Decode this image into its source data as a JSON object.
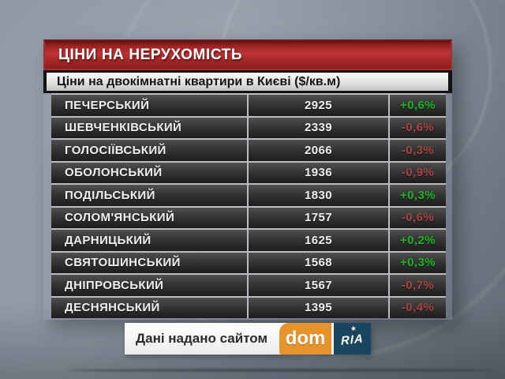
{
  "header": {
    "title": "ЦІНИ НА НЕРУХОМІСТЬ"
  },
  "subtitle": {
    "text": "Ціни на двокімнатні квартири в Києві ($/кв.м)"
  },
  "chart_data": {
    "type": "table",
    "title": "ЦІНИ НА НЕРУХОМІСТЬ",
    "subtitle": "Ціни на двокімнатні квартири в Києві ($/кв.м)",
    "columns": [
      "district",
      "price_usd_per_sqm",
      "change_percent"
    ],
    "rows": [
      {
        "district": "ПЕЧЕРСЬКИЙ",
        "price": "2925",
        "change": "+0,6%",
        "direction": "up"
      },
      {
        "district": "ШЕВЧЕНКІВСЬКИЙ",
        "price": "2339",
        "change": "-0,6%",
        "direction": "down"
      },
      {
        "district": "ГОЛОСІЇВСЬКИЙ",
        "price": "2066",
        "change": "-0,3%",
        "direction": "down"
      },
      {
        "district": "ОБОЛОНСЬКИЙ",
        "price": "1936",
        "change": "-0,9%",
        "direction": "down"
      },
      {
        "district": "ПОДІЛЬСЬКИЙ",
        "price": "1830",
        "change": "+0,3%",
        "direction": "up"
      },
      {
        "district": "СОЛОМ'ЯНСЬКИЙ",
        "price": "1757",
        "change": "-0,6%",
        "direction": "down"
      },
      {
        "district": "ДАРНИЦЬКИЙ",
        "price": "1625",
        "change": "+0,2%",
        "direction": "up"
      },
      {
        "district": "СВЯТОШИНСЬКИЙ",
        "price": "1568",
        "change": "+0,3%",
        "direction": "up"
      },
      {
        "district": "ДНІПРОВСЬКИЙ",
        "price": "1567",
        "change": "-0,7%",
        "direction": "down"
      },
      {
        "district": "ДЕСНЯНСЬКИЙ",
        "price": "1395",
        "change": "-0,4%",
        "direction": "down"
      }
    ]
  },
  "footer": {
    "credit_text": "Дані надано сайтом",
    "dom_logo": "dom",
    "ria_logo": "RIA",
    "star_icon": "★"
  },
  "colors": {
    "header_red": "#bf3434",
    "positive_green": "#1eb425",
    "negative_red": "#a84444",
    "dom_orange": "#e6932c",
    "ria_navy": "#17465e"
  }
}
